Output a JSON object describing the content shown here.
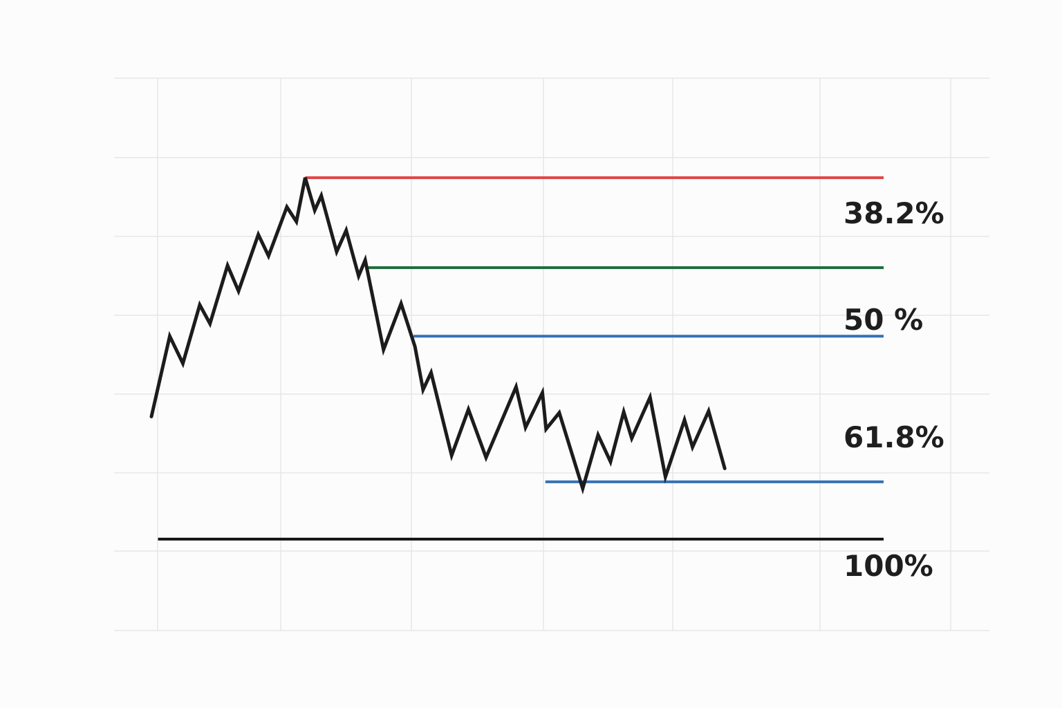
{
  "chart_data": {
    "type": "line",
    "title": "",
    "xlabel": "",
    "ylabel": "",
    "grid": true,
    "xlim": [
      0,
      100
    ],
    "ylim": [
      0,
      100
    ],
    "series": [
      {
        "color": "#1c1c1c",
        "points": [
          [
            0,
            42.9
          ],
          [
            2.5,
            62.1
          ],
          [
            4.3,
            55.6
          ],
          [
            6.6,
            69.6
          ],
          [
            8.0,
            65.1
          ],
          [
            10.4,
            79.0
          ],
          [
            11.9,
            72.9
          ],
          [
            14.6,
            86.4
          ],
          [
            16.0,
            81.3
          ],
          [
            18.5,
            93.0
          ],
          [
            19.8,
            89.5
          ],
          [
            21.0,
            100
          ],
          [
            22.3,
            92.2
          ],
          [
            23.2,
            95.7
          ],
          [
            25.3,
            82.3
          ],
          [
            26.6,
            87.4
          ],
          [
            28.3,
            76.5
          ],
          [
            29.2,
            80.3
          ],
          [
            31.7,
            58.9
          ],
          [
            34.1,
            69.9
          ],
          [
            36.0,
            59.6
          ],
          [
            37.1,
            49.3
          ],
          [
            38.2,
            53.4
          ],
          [
            41.0,
            33.6
          ],
          [
            43.3,
            44.6
          ],
          [
            45.7,
            33.1
          ],
          [
            49.8,
            50.0
          ],
          [
            51.1,
            40.3
          ],
          [
            53.4,
            48.6
          ],
          [
            53.9,
            39.9
          ],
          [
            55.7,
            43.8
          ],
          [
            58.9,
            25.7
          ],
          [
            61.0,
            38.5
          ],
          [
            62.7,
            32.1
          ],
          [
            64.5,
            44.0
          ],
          [
            65.6,
            37.7
          ],
          [
            68.1,
            47.5
          ],
          [
            70.2,
            28.5
          ],
          [
            72.8,
            42.1
          ],
          [
            73.9,
            35.6
          ],
          [
            76.1,
            44.2
          ],
          [
            78.3,
            30.5
          ]
        ]
      }
    ],
    "levels": [
      {
        "label": "38.2%",
        "value": 100,
        "color": "#e04848",
        "x_start": 21.0,
        "x_end": 100
      },
      {
        "label": "50 %",
        "value": 78.5,
        "color": "#1e6b3e",
        "x_start": 29.2,
        "x_end": 100
      },
      {
        "label": "",
        "value": 62.1,
        "color": "#3572b4",
        "x_start": 35.8,
        "x_end": 100
      },
      {
        "label": "61.8%",
        "value": null,
        "color": "#3572b4",
        "x_start": null,
        "x_end": null
      },
      {
        "label": "",
        "value": 27.3,
        "color": "#3572b4",
        "x_start": 53.8,
        "x_end": 100
      },
      {
        "label": "100%",
        "value": null,
        "color": "#111111",
        "x_start": null,
        "x_end": null
      }
    ],
    "baseline": {
      "value": 13.6,
      "color": "#111111",
      "x_start": 0.9,
      "x_end": 100
    }
  }
}
